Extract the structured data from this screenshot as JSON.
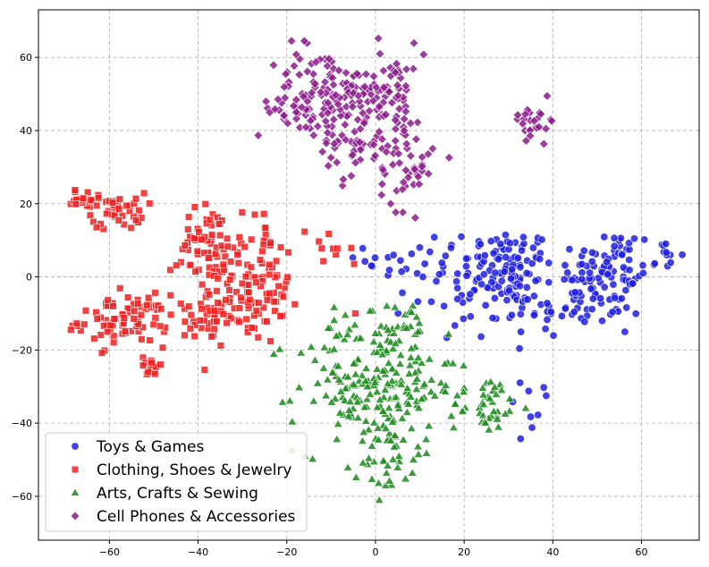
{
  "chart_data": {
    "type": "scatter",
    "title": "",
    "xlabel": "",
    "ylabel": "",
    "xlim": [
      -76,
      73
    ],
    "ylim": [
      -72,
      73
    ],
    "xticks": [
      -60,
      -40,
      -20,
      0,
      20,
      40,
      60
    ],
    "yticks": [
      -60,
      -40,
      -20,
      0,
      20,
      40,
      60
    ],
    "grid": true,
    "legend_location": "lower-left",
    "series": [
      {
        "name": "Toys & Games",
        "color": "#1f1fe0",
        "marker": "circle",
        "clusters": [
          {
            "cx": 30,
            "cy": 3,
            "sx": 5,
            "sy": 5,
            "n": 90
          },
          {
            "cx": 52,
            "cy": 2,
            "sx": 6,
            "sy": 6,
            "n": 80
          },
          {
            "cx": 45,
            "cy": -8,
            "sx": 8,
            "sy": 5,
            "n": 60
          },
          {
            "cx": 20,
            "cy": -5,
            "sx": 6,
            "sy": 6,
            "n": 40
          },
          {
            "cx": 10,
            "cy": 5,
            "sx": 6,
            "sy": 6,
            "n": 25
          },
          {
            "cx": 65,
            "cy": 6,
            "sx": 2,
            "sy": 1.5,
            "n": 10
          },
          {
            "cx": 35,
            "cy": -35,
            "sx": 3,
            "sy": 4,
            "n": 8
          }
        ]
      },
      {
        "name": "Clothing, Shoes & Jewelry",
        "color": "#f02020",
        "marker": "square",
        "clusters": [
          {
            "cx": -66,
            "cy": 21,
            "sx": 2,
            "sy": 1.5,
            "n": 18
          },
          {
            "cx": -58,
            "cy": 18,
            "sx": 3,
            "sy": 2.5,
            "n": 40
          },
          {
            "cx": -57,
            "cy": -12,
            "sx": 5,
            "sy": 3.5,
            "n": 80
          },
          {
            "cx": -50,
            "cy": -25,
            "sx": 1.5,
            "sy": 1,
            "n": 12
          },
          {
            "cx": -38,
            "cy": 8,
            "sx": 4,
            "sy": 6,
            "n": 60
          },
          {
            "cx": -28,
            "cy": 3,
            "sx": 4,
            "sy": 7,
            "n": 70
          },
          {
            "cx": -36,
            "cy": -10,
            "sx": 5,
            "sy": 4,
            "n": 50
          },
          {
            "cx": -28,
            "cy": -8,
            "sx": 4,
            "sy": 5,
            "n": 40
          },
          {
            "cx": -10,
            "cy": 5,
            "sx": 4,
            "sy": 5,
            "n": 10
          }
        ]
      },
      {
        "name": "Arts, Crafts & Sewing",
        "color": "#1a8a1a",
        "marker": "triangle",
        "clusters": [
          {
            "cx": 0,
            "cy": -30,
            "sx": 9,
            "sy": 9,
            "n": 200
          },
          {
            "cx": 3,
            "cy": -50,
            "sx": 3,
            "sy": 5,
            "n": 30
          },
          {
            "cx": 25,
            "cy": -35,
            "sx": 4,
            "sy": 4,
            "n": 40
          },
          {
            "cx": 5,
            "cy": -15,
            "sx": 5,
            "sy": 4,
            "n": 30
          }
        ]
      },
      {
        "name": "Cell Phones & Accessories",
        "color": "#8b1a8b",
        "marker": "diamond",
        "clusters": [
          {
            "cx": -13,
            "cy": 50,
            "sx": 5,
            "sy": 7,
            "n": 80
          },
          {
            "cx": -5,
            "cy": 42,
            "sx": 4,
            "sy": 8,
            "n": 70
          },
          {
            "cx": 3,
            "cy": 50,
            "sx": 4,
            "sy": 7,
            "n": 80
          },
          {
            "cx": 7,
            "cy": 30,
            "sx": 3,
            "sy": 6,
            "n": 40
          },
          {
            "cx": -20,
            "cy": 45,
            "sx": 2,
            "sy": 3,
            "n": 15
          },
          {
            "cx": 36,
            "cy": 43,
            "sx": 2.5,
            "sy": 2.5,
            "n": 25
          }
        ]
      }
    ]
  }
}
